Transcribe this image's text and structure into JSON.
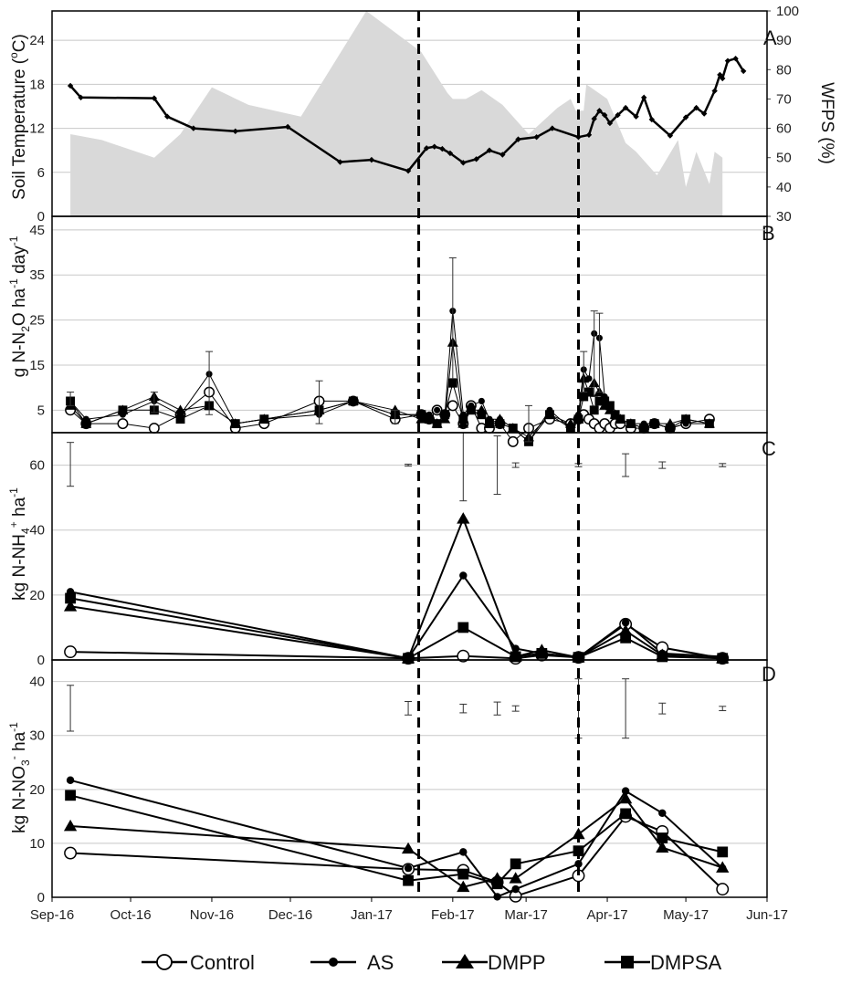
{
  "chart_data": {
    "type": "line",
    "shared_x_ticks": [
      "Sep-16",
      "Oct-16",
      "Nov-16",
      "Dec-16",
      "Jan-17",
      "Feb-17",
      "Mar-17",
      "Apr-17",
      "May-17",
      "Jun-17"
    ],
    "vertical_dashed_lines_x": [
      "2017-01-19",
      "2017-03-21"
    ],
    "legend": {
      "placement": "bottom-center",
      "entries": [
        {
          "name": "Control",
          "marker": "open-circle"
        },
        {
          "name": "AS",
          "marker": "filled-circle-small"
        },
        {
          "name": "DMPP",
          "marker": "filled-triangle"
        },
        {
          "name": "DMPSA",
          "marker": "filled-square"
        }
      ]
    },
    "panels": [
      {
        "letter": "A",
        "ylabel_left": "Soil Temperature (°C)",
        "ylabel_left_parts": {
          "main": "Soil Temperature (",
          "sup": "o",
          "tail": "C)"
        },
        "ylabel_right": "WFPS (%)",
        "ylim_left": [
          0,
          28
        ],
        "yticks_left": [
          "0",
          "6",
          "12",
          "18",
          "24"
        ],
        "ylim_right": [
          30,
          100
        ],
        "yticks_right": [
          "30",
          "40",
          "50",
          "60",
          "70",
          "80",
          "90",
          "100"
        ],
        "wfps_area": {
          "fill": "#d9d9d9",
          "x": [
            "2016-09-08",
            "2016-09-20",
            "2016-10-10",
            "2016-10-20",
            "2016-11-01",
            "2016-11-15",
            "2016-12-05",
            "2016-12-30",
            "2017-01-20",
            "2017-01-30",
            "2017-02-01",
            "2017-02-06",
            "2017-02-12",
            "2017-02-20",
            "2017-03-02",
            "2017-03-13",
            "2017-03-18",
            "2017-03-20",
            "2017-03-21",
            "2017-03-23",
            "2017-03-24",
            "2017-04-01",
            "2017-04-08",
            "2017-04-12",
            "2017-04-20",
            "2017-04-28",
            "2017-05-01",
            "2017-05-05",
            "2017-05-10",
            "2017-05-12",
            "2017-05-15"
          ],
          "y": [
            58,
            56,
            50,
            58,
            74,
            68,
            64,
            100,
            86,
            72,
            70,
            70,
            73,
            68,
            58,
            67,
            70,
            66,
            66,
            66,
            75,
            70,
            55,
            52,
            44,
            56,
            40,
            52,
            41,
            52,
            50
          ]
        },
        "temp_series": {
          "x": [
            "2016-09-08",
            "2016-09-12",
            "2016-10-10",
            "2016-10-15",
            "2016-10-25",
            "2016-11-10",
            "2016-11-30",
            "2016-12-20",
            "2017-01-01",
            "2017-01-15",
            "2017-01-22",
            "2017-01-25",
            "2017-01-28",
            "2017-01-31",
            "2017-02-05",
            "2017-02-10",
            "2017-02-15",
            "2017-02-20",
            "2017-02-26",
            "2017-03-05",
            "2017-03-11",
            "2017-03-21",
            "2017-03-25",
            "2017-03-27",
            "2017-03-29",
            "2017-03-31",
            "2017-04-02",
            "2017-04-05",
            "2017-04-08",
            "2017-04-12",
            "2017-04-15",
            "2017-04-18",
            "2017-04-25",
            "2017-05-01",
            "2017-05-05",
            "2017-05-08",
            "2017-05-12",
            "2017-05-14",
            "2017-05-15",
            "2017-05-17",
            "2017-05-20",
            "2017-05-23"
          ],
          "y": [
            17.8,
            16.2,
            16.1,
            13.6,
            12.0,
            11.6,
            12.2,
            7.4,
            7.7,
            6.2,
            9.3,
            9.5,
            9.2,
            8.6,
            7.3,
            7.8,
            9.0,
            8.4,
            10.5,
            10.8,
            12.0,
            10.8,
            11.1,
            13.3,
            14.4,
            13.8,
            12.7,
            13.8,
            14.8,
            13.6,
            16.2,
            13.2,
            11.0,
            13.5,
            14.8,
            14.0,
            17.1,
            19.3,
            18.8,
            21.2,
            21.5,
            19.8
          ]
        }
      },
      {
        "letter": "B",
        "ylabel_parts": {
          "a": "g N-N",
          "b_sub": "2",
          "c": "O ha",
          "d_sup": "-1",
          "e": " day",
          "f_sup": "-1"
        },
        "ylim": [
          0,
          48
        ],
        "yticks": [
          "5",
          "15",
          "25",
          "35",
          "45"
        ],
        "x": [
          "2016-09-08",
          "2016-09-14",
          "2016-09-28",
          "2016-10-10",
          "2016-10-20",
          "2016-10-31",
          "2016-11-10",
          "2016-11-21",
          "2016-12-12",
          "2016-12-25",
          "2017-01-10",
          "2017-01-20",
          "2017-01-23",
          "2017-01-26",
          "2017-01-29",
          "2017-02-01",
          "2017-02-05",
          "2017-02-08",
          "2017-02-12",
          "2017-02-15",
          "2017-02-19",
          "2017-02-24",
          "2017-03-02",
          "2017-03-10",
          "2017-03-18",
          "2017-03-21",
          "2017-03-23",
          "2017-03-25",
          "2017-03-27",
          "2017-03-29",
          "2017-03-31",
          "2017-04-02",
          "2017-04-04",
          "2017-04-06",
          "2017-04-10",
          "2017-04-15",
          "2017-04-19",
          "2017-04-25",
          "2017-05-01",
          "2017-05-10"
        ],
        "series": [
          {
            "name": "Control",
            "values": [
              5,
              2,
              2,
              1,
              4,
              9,
              1,
              2,
              7,
              7,
              3,
              4,
              3,
              5,
              4,
              6,
              2,
              6,
              1,
              1,
              2,
              -2,
              1,
              3,
              2,
              3,
              4,
              3,
              2,
              1,
              2,
              1,
              2,
              2,
              1,
              1,
              2,
              1,
              2,
              3
            ]
          },
          {
            "name": "AS",
            "values": [
              7,
              3,
              4,
              7,
              4,
              13,
              2,
              3,
              4,
              7,
              4,
              4,
              4,
              5,
              4,
              27,
              4,
              6,
              7,
              3,
              3,
              1,
              -2,
              5,
              1,
              4,
              14,
              12,
              22,
              21,
              8,
              6,
              4,
              3,
              2,
              2,
              2,
              1,
              2,
              2
            ]
          },
          {
            "name": "DMPP",
            "values": [
              6,
              2,
              5,
              8,
              5,
              6,
              2,
              3,
              5,
              7,
              5,
              3,
              3,
              2,
              3,
              20,
              2,
              5,
              5,
              2,
              3,
              1,
              -1,
              4,
              2,
              3,
              12,
              9,
              11,
              9,
              6,
              5,
              4,
              3,
              2,
              1,
              2,
              2,
              3,
              2
            ]
          },
          {
            "name": "DMPSA",
            "values": [
              7,
              2,
              5,
              5,
              3,
              6,
              2,
              3,
              5,
              7,
              4,
              4,
              3,
              2,
              4,
              11,
              3,
              5,
              4,
              2,
              2,
              1,
              -2,
              4,
              1,
              3,
              8,
              9,
              5,
              7,
              7,
              6,
              4,
              3,
              2,
              1,
              2,
              1,
              3,
              2
            ]
          }
        ]
      },
      {
        "letter": "C",
        "ylabel_parts": {
          "a": "kg  N-NH",
          "b_sub": "4",
          "c_sup": "+",
          "d": " ha",
          "e_sup": "-1"
        },
        "ylim": [
          0,
          70
        ],
        "yticks": [
          "0",
          "20",
          "40",
          "60"
        ],
        "x": [
          "2016-09-08",
          "2017-01-15",
          "2017-02-05",
          "2017-02-25",
          "2017-03-07",
          "2017-03-21",
          "2017-04-08",
          "2017-04-22",
          "2017-05-15"
        ],
        "series": [
          {
            "name": "Control",
            "values": [
              2.5,
              0.5,
              1.2,
              0.5,
              1.5,
              0.8,
              11.0,
              3.8,
              0.5
            ]
          },
          {
            "name": "AS",
            "values": [
              21.0,
              0.5,
              26.0,
              3.5,
              2.0,
              0.8,
              11.5,
              2.0,
              1.0
            ]
          },
          {
            "name": "DMPP",
            "values": [
              16.5,
              0.5,
              43.5,
              1.0,
              3.0,
              0.8,
              9.0,
              1.5,
              0.5
            ]
          },
          {
            "name": "DMPSA",
            "values": [
              19.0,
              0.5,
              10.0,
              1.0,
              2.0,
              0.8,
              6.8,
              1.0,
              0.5
            ]
          }
        ]
      },
      {
        "letter": "D",
        "ylabel_parts": {
          "a": "kg  N-NO",
          "b_sub": "3",
          "c_sup": "-",
          "d": " ha",
          "e_sup": "-1"
        },
        "ylim": [
          0,
          44
        ],
        "yticks": [
          "0",
          "10",
          "20",
          "30",
          "40"
        ],
        "x": [
          "2016-09-08",
          "2017-01-15",
          "2017-02-05",
          "2017-02-18",
          "2017-02-25",
          "2017-03-21",
          "2017-04-08",
          "2017-04-22",
          "2017-05-15"
        ],
        "series": [
          {
            "name": "Control",
            "values": [
              8.2,
              5.2,
              5.0,
              2.8,
              0.2,
              4.0,
              15.0,
              12.2,
              1.5
            ]
          },
          {
            "name": "AS",
            "values": [
              21.7,
              5.4,
              8.4,
              0.1,
              1.5,
              6.2,
              19.7,
              15.6,
              5.4
            ]
          },
          {
            "name": "DMPP",
            "values": [
              13.2,
              9.0,
              1.9,
              3.5,
              3.5,
              11.7,
              18.3,
              9.2,
              5.5
            ]
          },
          {
            "name": "DMPSA",
            "values": [
              18.9,
              3.1,
              4.3,
              2.5,
              6.2,
              8.6,
              15.5,
              11.0,
              8.4
            ]
          }
        ]
      }
    ]
  }
}
